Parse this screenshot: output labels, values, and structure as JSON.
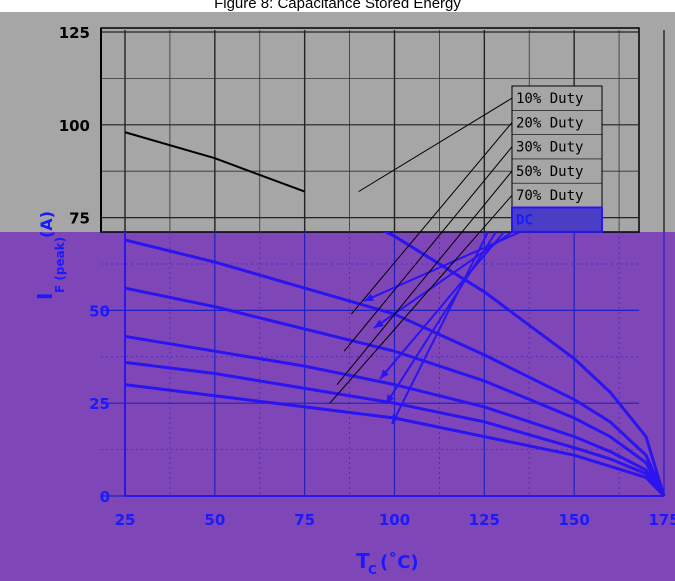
{
  "page": {
    "title": "Figure 8: Capacitance Stored Energy"
  },
  "chart_data": {
    "type": "line",
    "title": "",
    "xlabel": "T",
    "xlabel_sub": "C",
    "xlabel_unit": "(˚C)",
    "ylabel": "I",
    "ylabel_sub": "F (peak)",
    "ylabel_unit": "(A)",
    "xlim": [
      25,
      175
    ],
    "ylim": [
      0,
      125
    ],
    "x_ticks": [
      25,
      50,
      75,
      100,
      125,
      150,
      175
    ],
    "y_ticks": [
      0,
      25,
      50,
      75,
      100,
      125
    ],
    "grid": true,
    "legend_position": "top-right",
    "legend": [
      "10% Duty",
      "20% Duty",
      "30% Duty",
      "50% Duty",
      "70% Duty",
      "DC"
    ],
    "x": [
      25,
      50,
      75,
      100,
      125,
      150,
      160,
      170,
      175
    ],
    "series": [
      {
        "name": "10% Duty",
        "values": [
          98,
          91,
          82,
          70,
          55,
          37,
          28,
          16,
          0
        ]
      },
      {
        "name": "20% Duty",
        "values": [
          69,
          63,
          56,
          49,
          38,
          26,
          20,
          11,
          0
        ]
      },
      {
        "name": "30% Duty",
        "values": [
          56,
          51,
          45,
          39,
          31,
          21,
          16,
          9,
          0
        ]
      },
      {
        "name": "50% Duty",
        "values": [
          43,
          39,
          35,
          30,
          24,
          16,
          12,
          7,
          0
        ]
      },
      {
        "name": "70% Duty",
        "values": [
          36,
          33,
          29,
          25,
          20,
          13,
          10,
          6,
          0
        ]
      },
      {
        "name": "DC",
        "values": [
          30,
          27,
          24,
          21,
          16,
          11,
          8,
          5,
          0
        ]
      }
    ]
  },
  "colors": {
    "upper_panel": "#a6a6a6",
    "lower_panel": "#7f46b8",
    "upper_curve": "#000000",
    "lower_curve": "#2a14f0",
    "upper_text": "#000000",
    "lower_text": "#1a1aff",
    "legend_bg": "#a6a6a6",
    "dc_box": "#4a3fc4"
  }
}
